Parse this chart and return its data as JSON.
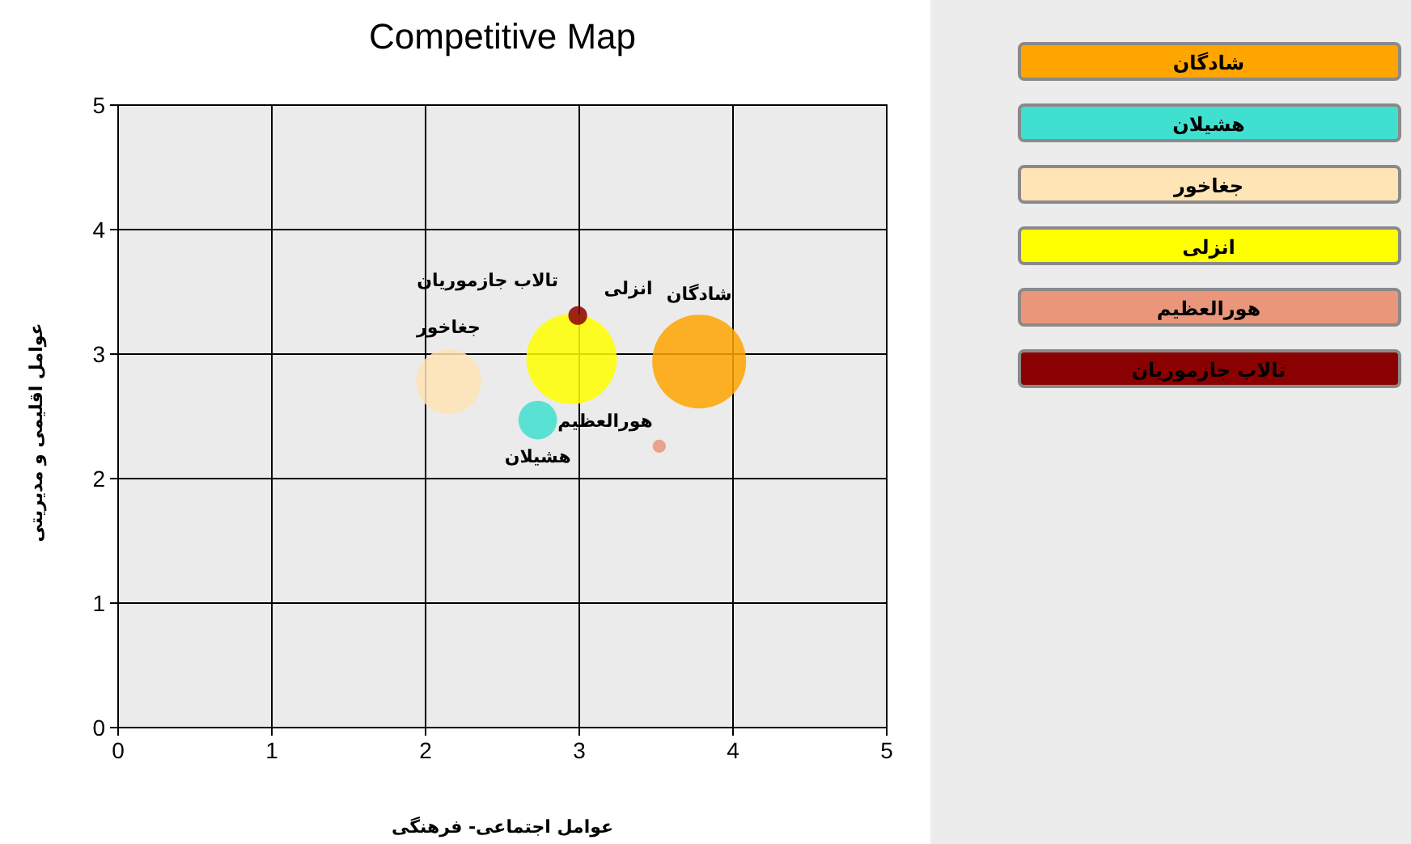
{
  "chart_data": {
    "type": "bubble",
    "title": "Competitive Map",
    "xlabel": "عوامل اجتماعی- فرهنگی",
    "ylabel": "عوامل اقلیمی و مدیریتی",
    "xlim": [
      0,
      5
    ],
    "ylim": [
      0,
      5
    ],
    "xticks": [
      0,
      1,
      2,
      3,
      4,
      5
    ],
    "yticks": [
      0,
      1,
      2,
      3,
      4,
      5
    ],
    "grid": true,
    "legend": "right",
    "series": [
      {
        "name": "شادگان",
        "color": "#ffa500",
        "x": [
          3.78
        ],
        "values": [
          2.94
        ],
        "sizes": [
          1
        ]
      },
      {
        "name": "هشیلان",
        "color": "#40e0d0",
        "x": [
          2.73
        ],
        "values": [
          2.47
        ],
        "sizes": [
          0.17
        ]
      },
      {
        "name": "جغاخور",
        "color": "#ffe4b5",
        "x": [
          2.15
        ],
        "values": [
          2.78
        ],
        "sizes": [
          0.48
        ]
      },
      {
        "name": "انزلی",
        "color": "#ffff00",
        "x": [
          2.95
        ],
        "values": [
          2.96
        ],
        "sizes": [
          0.93
        ]
      },
      {
        "name": "هورالعظیم",
        "color": "#e9967a",
        "x": [
          3.52
        ],
        "values": [
          2.26
        ],
        "sizes": [
          0.02
        ]
      },
      {
        "name": "تالاب جازموریان",
        "color": "#8b0000",
        "x": [
          2.99
        ],
        "values": [
          3.31
        ],
        "sizes": [
          0.04
        ]
      }
    ]
  }
}
